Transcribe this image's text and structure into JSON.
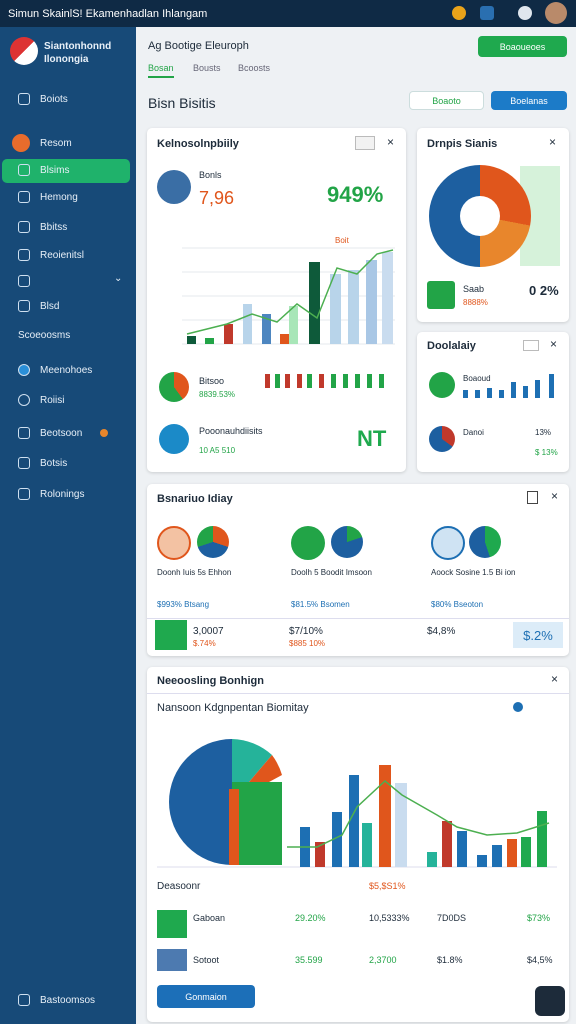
{
  "top_bar": {
    "title": "Simun SkainlS! Ekamenhadlan Ihlangam"
  },
  "sidebar": {
    "brand": "Siantonhonnd Ilonongia",
    "nav": [
      "Boiots",
      "Resom",
      "Blsims",
      "Hemong",
      "Bbitss",
      "Reoienitsl",
      "Blsd",
      "Meenohoes",
      "Roiisi",
      "Beotsoon",
      "Botsis",
      "Rolonings"
    ],
    "section": "Scoeoosms",
    "footer": "Bastoomsos"
  },
  "header": {
    "breadcrumb": "Ag Bootige Eleuroph",
    "tabs": [
      "Bosan",
      "Bousts",
      "Bcoosts"
    ],
    "primary_button": "Boaoueoes",
    "title": "Bisn Bisitis",
    "filter_button": "Boaoto",
    "action_button": "Boelanas"
  },
  "cards": [
    {
      "title": "Kelnosolnpbiily",
      "kpi_label": "Bonls",
      "kpi_value": "7,96",
      "percent": "949%",
      "chart_note": "Boit",
      "row1_label": "Bitsoo",
      "row1_value": "8839.53%",
      "row2_label": "Pooonauhdiisits",
      "row2_value": "10 A5 510",
      "badge": "NT"
    },
    {
      "title": "Drnpis Sianis",
      "label": "Saab",
      "value": "0 2%",
      "sub": "8888%"
    },
    {
      "title": "Doolalaiy",
      "row1_label": "Boaoud",
      "row2_label": "Danoi",
      "row2_value": "13%",
      "row2_sub": "$ 13%"
    },
    {
      "title": "Bsnariuo Idiay",
      "columns": [
        {
          "text": "Doonh Iuis 5s Ehhon",
          "meta": "$993% Btsang",
          "value": "3,0007",
          "sub": "$.74%"
        },
        {
          "text": "Doolh 5 Boodit Imsoon",
          "meta": "$81.5% Bsomen",
          "value": "$7/10%",
          "sub": "$885 10%"
        },
        {
          "text": "Aoock Sosine 1.5 Bi ion",
          "meta": "$80% Bseoton",
          "value": "$4,8%",
          "sub": "$.2%"
        }
      ]
    },
    {
      "title": "Neeoosling Bonhign",
      "subtitle": "Nansoon Kdgnpentan Biomitay",
      "chart_label": "Deasoonr",
      "chart_note": "$5,$S1%",
      "rows": [
        [
          "Gaboan",
          "29.20%",
          "10,5333%",
          "7D0DS",
          "$73%"
        ],
        [
          "Sotoot",
          "35.599",
          "2,3700",
          "$1.8%",
          "$4,5%"
        ]
      ],
      "button": "Gonmaion"
    }
  ]
}
